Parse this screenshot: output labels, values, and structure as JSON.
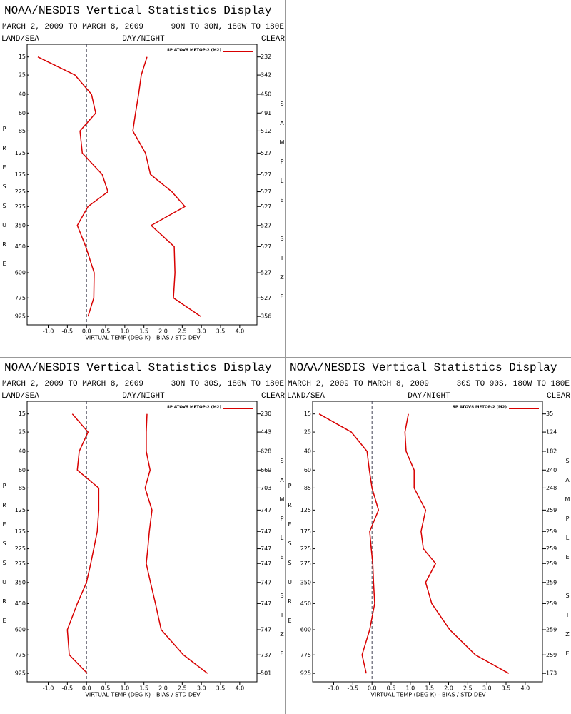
{
  "chart_data": [
    {
      "type": "line",
      "title": "NOAA/NESDIS Vertical Statistics Display",
      "date_range": "MARCH 2, 2009 TO MARCH 8, 2009",
      "region": "90N TO 30N, 180W TO 180E",
      "left_header": "LAND/SEA",
      "center_header": "DAY/NIGHT",
      "right_header": "CLEAR",
      "y_label": "PRESSURE",
      "right_label": "SAMPLE SIZE",
      "x_label": "VIRTUAL TEMP (DEG K) - BIAS / STD DEV",
      "legend": {
        "label": "SP ATOVS METOP-2 (M2)",
        "color": "#d80000"
      },
      "y": [
        15,
        25,
        40,
        60,
        85,
        125,
        175,
        225,
        275,
        350,
        450,
        600,
        775,
        925
      ],
      "yticks": [
        15,
        25,
        40,
        60,
        85,
        125,
        175,
        225,
        275,
        350,
        450,
        600,
        775,
        925
      ],
      "ylim": [
        1000,
        10
      ],
      "y_scale_power": 0.286,
      "xlim": [
        -1.55,
        4.45
      ],
      "xticks": [
        {
          "value": -1,
          "label": "-1.0"
        },
        -0.5,
        {
          "value": 0,
          "label": "0.0"
        },
        0.5,
        {
          "value": 1,
          "label": "1.0"
        },
        1.5,
        {
          "value": 2,
          "label": "2.0"
        },
        2.5,
        {
          "value": 3,
          "label": "3.0"
        },
        3.5,
        {
          "value": 4,
          "label": "4.0"
        }
      ],
      "zero_line": true,
      "series": [
        {
          "color": "#d80000",
          "values": [
            -1.27,
            -0.3,
            0.13,
            0.24,
            -0.17,
            -0.11,
            0.41,
            0.56,
            0.04,
            -0.24,
            -0.02,
            0.2,
            0.19,
            0.04
          ]
        },
        {
          "color": "#d80000",
          "values": [
            1.58,
            1.43,
            1.36,
            1.28,
            1.21,
            1.54,
            1.67,
            2.23,
            2.57,
            1.69,
            2.29,
            2.31,
            2.27,
            2.98
          ]
        }
      ],
      "sample_size": [
        232,
        342,
        450,
        491,
        512,
        527,
        527,
        527,
        527,
        527,
        527,
        527,
        527,
        356
      ]
    },
    {
      "type": "line",
      "title": "NOAA/NESDIS Vertical Statistics Display",
      "date_range": "MARCH 2, 2009 TO MARCH 8, 2009",
      "region": "30N TO 30S, 180W TO 180E",
      "left_header": "LAND/SEA",
      "center_header": "DAY/NIGHT",
      "right_header": "CLEAR",
      "y_label": "PRESSURE",
      "right_label": "SAMPLE SIZE",
      "x_label": "VIRTUAL TEMP (DEG K) - BIAS / STD DEV",
      "legend": {
        "label": "SP ATOVS METOP-2 (M2)",
        "color": "#d80000"
      },
      "y": [
        15,
        25,
        40,
        60,
        85,
        125,
        175,
        225,
        275,
        350,
        450,
        600,
        775,
        925
      ],
      "yticks": [
        15,
        25,
        40,
        60,
        85,
        125,
        175,
        225,
        275,
        350,
        450,
        600,
        775,
        925
      ],
      "ylim": [
        1000,
        10
      ],
      "y_scale_power": 0.286,
      "xlim": [
        -1.55,
        4.45
      ],
      "xticks": [
        {
          "value": -1,
          "label": "-1.0"
        },
        -0.5,
        {
          "value": 0,
          "label": "0.0"
        },
        0.5,
        {
          "value": 1,
          "label": "1.0"
        },
        1.5,
        {
          "value": 2,
          "label": "2.0"
        },
        2.5,
        {
          "value": 3,
          "label": "3.0"
        },
        3.5,
        {
          "value": 4,
          "label": "4.0"
        }
      ],
      "zero_line": true,
      "series": [
        {
          "color": "#d80000",
          "values": [
            -0.37,
            0.04,
            -0.19,
            -0.24,
            0.32,
            0.32,
            0.28,
            0.19,
            0.11,
            0.0,
            -0.24,
            -0.5,
            -0.45,
            0.02
          ]
        },
        {
          "color": "#d80000",
          "values": [
            1.58,
            1.56,
            1.56,
            1.66,
            1.53,
            1.71,
            1.64,
            1.6,
            1.56,
            1.67,
            1.8,
            1.95,
            2.53,
            3.16
          ]
        }
      ],
      "sample_size": [
        230,
        443,
        628,
        669,
        703,
        747,
        747,
        747,
        747,
        747,
        747,
        747,
        737,
        501
      ]
    },
    {
      "type": "line",
      "title": "NOAA/NESDIS Vertical Statistics Display",
      "date_range": "MARCH 2, 2009 TO MARCH 8, 2009",
      "region": "30S TO 90S, 180W TO 180E",
      "left_header": "LAND/SEA",
      "center_header": "DAY/NIGHT",
      "right_header": "CLEAR",
      "y_label": "PRESSURE",
      "right_label": "SAMPLE SIZE",
      "x_label": "VIRTUAL TEMP (DEG K) - BIAS / STD DEV",
      "legend": {
        "label": "SP ATOVS METOP-2 (M2)",
        "color": "#d80000"
      },
      "y": [
        15,
        25,
        40,
        60,
        85,
        125,
        175,
        225,
        275,
        350,
        450,
        600,
        775,
        925
      ],
      "yticks": [
        15,
        25,
        40,
        60,
        85,
        125,
        175,
        225,
        275,
        350,
        450,
        600,
        775,
        925
      ],
      "ylim": [
        1000,
        10
      ],
      "y_scale_power": 0.286,
      "xlim": [
        -1.55,
        4.45
      ],
      "xticks": [
        {
          "value": -1,
          "label": "-1.0"
        },
        -0.5,
        {
          "value": 0,
          "label": "0.0"
        },
        0.5,
        {
          "value": 1,
          "label": "1.0"
        },
        1.5,
        {
          "value": 2,
          "label": "2.0"
        },
        2.5,
        {
          "value": 3,
          "label": "3.0"
        },
        3.5,
        {
          "value": 4,
          "label": "4.0"
        }
      ],
      "zero_line": true,
      "series": [
        {
          "color": "#d80000",
          "values": [
            -1.38,
            -0.54,
            -0.13,
            -0.07,
            0.0,
            0.17,
            -0.06,
            -0.02,
            0.02,
            0.04,
            0.07,
            -0.06,
            -0.26,
            -0.15
          ]
        },
        {
          "color": "#d80000",
          "values": [
            0.95,
            0.86,
            0.89,
            1.1,
            1.1,
            1.4,
            1.28,
            1.34,
            1.66,
            1.4,
            1.56,
            2.03,
            2.7,
            3.57
          ]
        }
      ],
      "sample_size": [
        35,
        124,
        182,
        240,
        248,
        259,
        259,
        259,
        259,
        259,
        259,
        259,
        259,
        173
      ]
    }
  ]
}
